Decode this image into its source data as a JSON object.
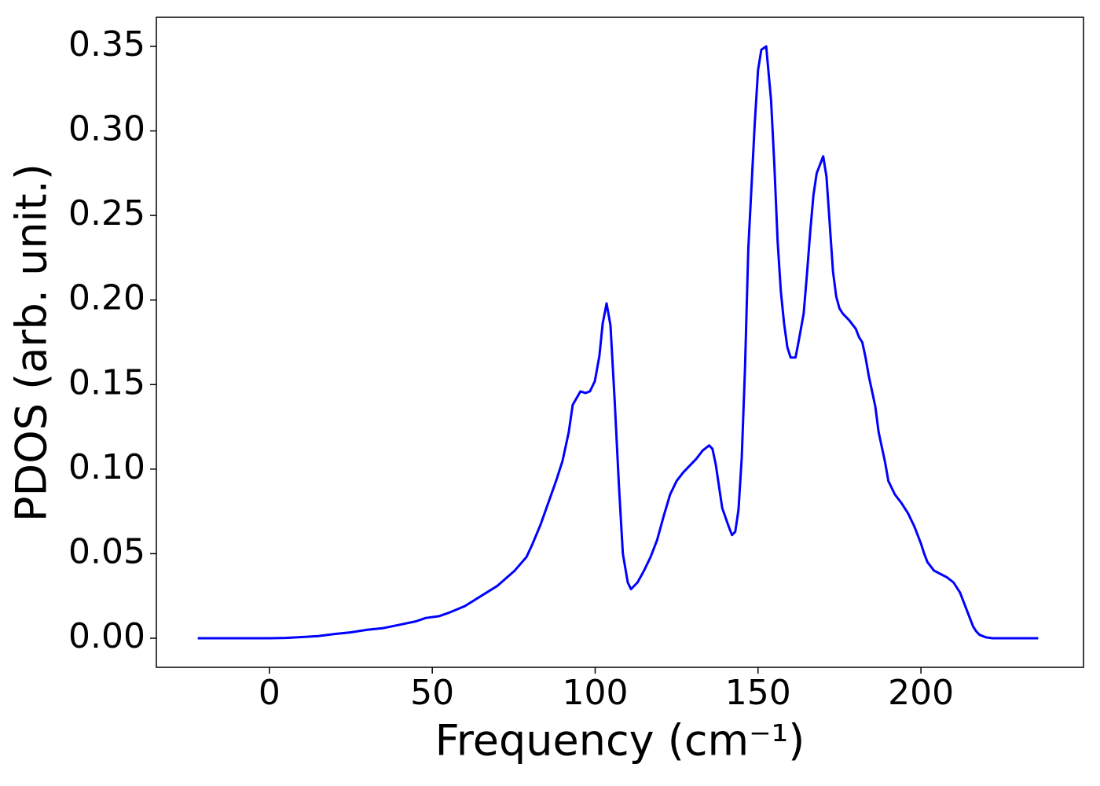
{
  "chart_data": {
    "type": "line",
    "xlabel": "Frequency (cm⁻¹)",
    "ylabel": "PDOS (arb. unit.)",
    "xlim": [
      -34.7,
      249.9
    ],
    "ylim": [
      -0.0172,
      0.3672
    ],
    "xticks": [
      0,
      50,
      100,
      150,
      200
    ],
    "yticks": [
      {
        "value": 0,
        "label": "0.00"
      },
      0.05,
      {
        "value": 0.1,
        "label": "0.10"
      },
      0.15,
      {
        "value": 0.2,
        "label": "0.20"
      },
      0.25,
      {
        "value": 0.3,
        "label": "0.30"
      },
      0.35
    ],
    "x": [
      -22,
      0,
      5,
      10,
      15,
      20,
      25,
      30,
      35,
      40,
      45,
      48,
      52,
      55,
      60,
      65,
      70,
      75.3,
      78.9,
      80.6,
      83.2,
      85.6,
      88,
      90,
      91.9,
      93.1,
      95.5,
      97,
      98.4,
      99.9,
      101.3,
      102.3,
      103.5,
      104.7,
      106,
      107.3,
      108.5,
      110,
      111,
      113,
      115,
      117,
      119,
      121,
      123,
      125,
      127,
      129,
      131,
      133,
      135,
      136,
      137,
      138,
      139,
      141,
      142,
      143,
      144,
      145,
      146,
      147,
      149,
      150,
      151,
      152.5,
      154,
      155,
      156,
      157,
      158,
      159,
      160,
      161.5,
      162.5,
      164,
      165,
      166,
      167,
      168,
      170,
      171,
      172,
      173,
      174,
      175,
      176,
      178,
      180,
      181,
      182,
      183,
      184,
      186,
      187,
      189,
      190,
      192,
      194,
      196,
      198,
      200,
      201,
      202,
      204,
      206,
      208,
      210,
      212,
      214,
      216,
      217,
      218,
      220,
      222,
      236
    ],
    "series": [
      {
        "name": "PDOS",
        "color": "#0000ff",
        "values": [
          0,
          0,
          0.0002,
          0.0007,
          0.0013,
          0.0025,
          0.0035,
          0.005,
          0.006,
          0.008,
          0.01,
          0.012,
          0.013,
          0.015,
          0.019,
          0.025,
          0.031,
          0.04,
          0.048,
          0.055,
          0.067,
          0.08,
          0.093,
          0.105,
          0.122,
          0.138,
          0.146,
          0.145,
          0.146,
          0.152,
          0.167,
          0.186,
          0.198,
          0.185,
          0.14,
          0.09,
          0.05,
          0.033,
          0.029,
          0.033,
          0.04,
          0.048,
          0.058,
          0.072,
          0.085,
          0.093,
          0.098,
          0.102,
          0.106,
          0.111,
          0.114,
          0.112,
          0.103,
          0.09,
          0.077,
          0.066,
          0.061,
          0.063,
          0.076,
          0.107,
          0.16,
          0.23,
          0.305,
          0.336,
          0.348,
          0.35,
          0.318,
          0.28,
          0.235,
          0.205,
          0.186,
          0.172,
          0.166,
          0.166,
          0.176,
          0.192,
          0.215,
          0.24,
          0.262,
          0.275,
          0.285,
          0.273,
          0.245,
          0.217,
          0.202,
          0.195,
          0.192,
          0.188,
          0.183,
          0.178,
          0.175,
          0.166,
          0.155,
          0.137,
          0.122,
          0.104,
          0.093,
          0.085,
          0.08,
          0.074,
          0.066,
          0.056,
          0.05,
          0.045,
          0.04,
          0.038,
          0.036,
          0.033,
          0.027,
          0.017,
          0.007,
          0.004,
          0.002,
          0.0005,
          0,
          0
        ]
      }
    ]
  }
}
